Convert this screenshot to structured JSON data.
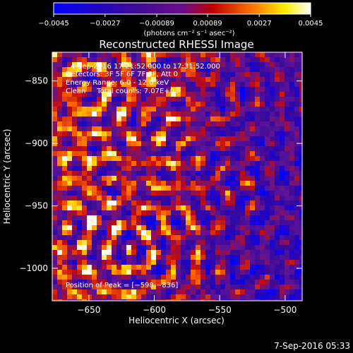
{
  "colorbar": {
    "tick_labels": [
      "−0.0045",
      "−0.0027",
      "−0.00089",
      "0.00089",
      "0.0027",
      "0.0045"
    ],
    "tick_values": [
      -0.0045,
      -0.0027,
      -0.00089,
      0.00089,
      0.0027,
      0.0045
    ],
    "range": [
      -0.0045,
      0.0045
    ],
    "units": "(photons cm⁻² s⁻¹ asec⁻²)"
  },
  "plot": {
    "title": "Reconstructed RHESSI Image",
    "overlay_lines": [
      "4-Sep-2016 17:21:52.000 to 17:31:52.000",
      "Detectors: 3F 5F 6F 7F 8F, Att 0",
      "Energy Range: 6.0 - 12.0 keV",
      "Clean     Total counts: 7.07E+03"
    ],
    "peak_label": "Position of Peak = [−598,−836]"
  },
  "axes": {
    "xlabel": "Heliocentric X (arcsec)",
    "ylabel": "Heliocentric Y (arcsec)",
    "xlim": [
      -678,
      -487
    ],
    "ylim": [
      -1026,
      -827
    ],
    "xticks": [
      -650,
      -600,
      -550,
      -500
    ],
    "xtick_labels": [
      "−650",
      "−600",
      "−550",
      "−500"
    ],
    "yticks": [
      -850,
      -900,
      -950,
      -1000
    ],
    "ytick_labels": [
      "−850",
      "−900",
      "−950",
      "−1000"
    ]
  },
  "timestamp": "7-Sep-2016 05:33",
  "chart_data": {
    "type": "heatmap",
    "title": "Reconstructed RHESSI Image",
    "xlabel": "Heliocentric X (arcsec)",
    "ylabel": "Heliocentric Y (arcsec)",
    "xlim": [
      -678,
      -487
    ],
    "ylim": [
      -1026,
      -827
    ],
    "value_range": [
      -0.0045,
      0.0045
    ],
    "peak": [
      -598,
      -836
    ],
    "colormap": [
      "#0000ff",
      "#6a0dad",
      "#ff0000",
      "#ffa500",
      "#ffff00",
      "#ffffff"
    ]
  }
}
